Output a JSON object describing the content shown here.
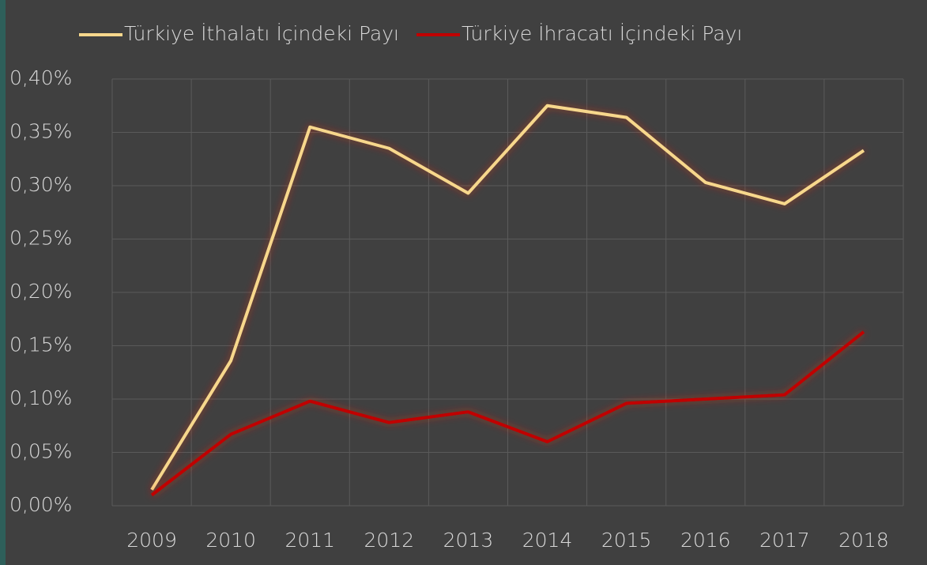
{
  "chart_data": {
    "type": "line",
    "categories": [
      "2009",
      "2010",
      "2011",
      "2012",
      "2013",
      "2014",
      "2015",
      "2016",
      "2017",
      "2018"
    ],
    "series": [
      {
        "name": "Türkiye İthalatı İçindeki Payı",
        "color": "#f7d78c",
        "values": [
          0.015,
          0.136,
          0.355,
          0.335,
          0.293,
          0.375,
          0.364,
          0.303,
          0.283,
          0.333
        ]
      },
      {
        "name": "Türkiye İhracatı İçindeki Payı",
        "color": "#c00000",
        "values": [
          0.01,
          0.067,
          0.098,
          0.078,
          0.088,
          0.06,
          0.096,
          0.1,
          0.104,
          0.163
        ]
      }
    ],
    "ylim": [
      0,
      0.4
    ],
    "yticks": [
      {
        "value": 0,
        "label": "0,00%"
      },
      {
        "value": 0.05,
        "label": "0,05%"
      },
      {
        "value": 0.1,
        "label": "0,10%"
      },
      {
        "value": 0.15,
        "label": "0,15%"
      },
      {
        "value": 0.2,
        "label": "0,20%"
      },
      {
        "value": 0.25,
        "label": "0,25%"
      },
      {
        "value": 0.3,
        "label": "0,30%"
      },
      {
        "value": 0.35,
        "label": "0,35%"
      },
      {
        "value": 0.4,
        "label": "0,40%"
      }
    ],
    "grid": true,
    "legend": "top"
  }
}
